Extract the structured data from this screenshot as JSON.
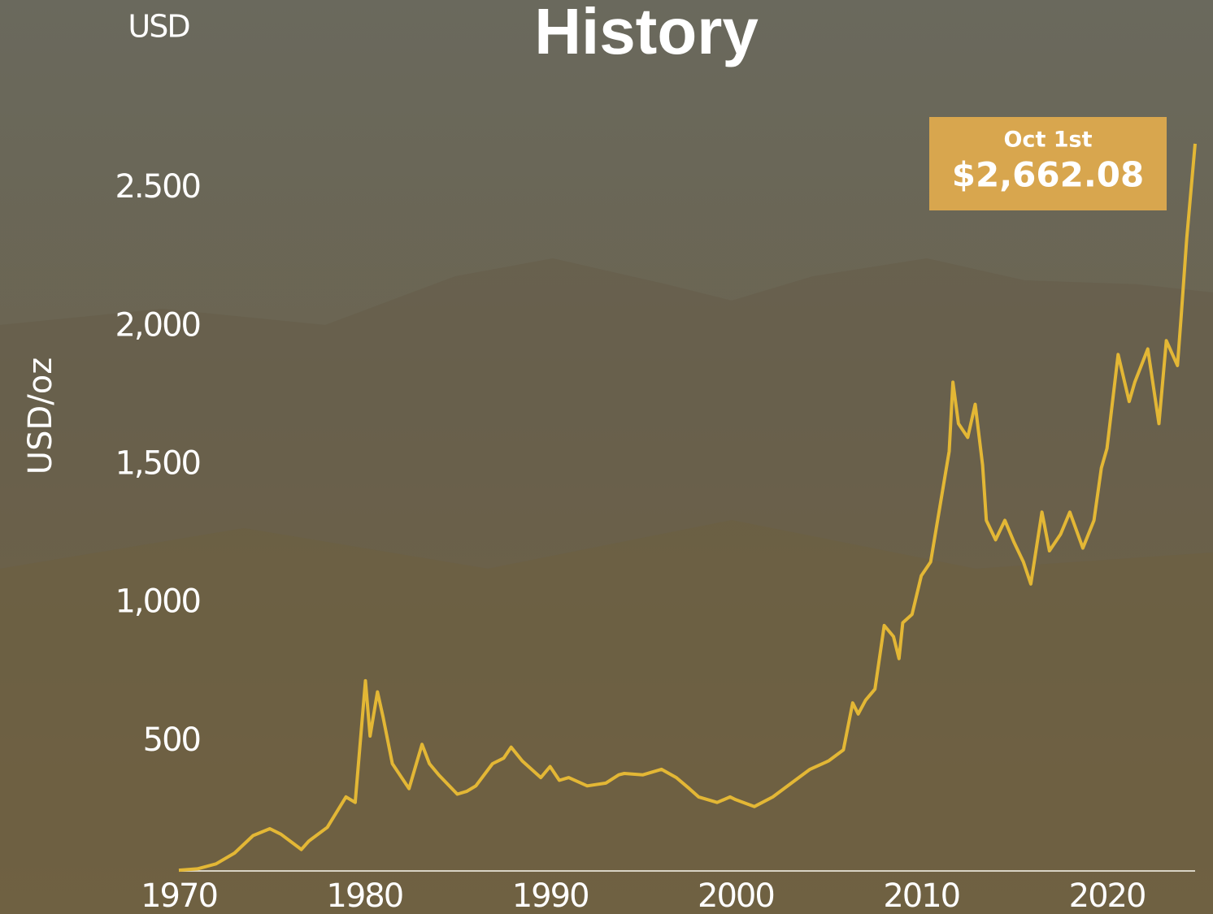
{
  "chart_data": {
    "type": "line",
    "title": "History",
    "unit_label": "USD",
    "y_label": "USD/oz",
    "annotation": {
      "date": "Oct 1st",
      "price": "$2,662.08"
    },
    "color": "#e3b735",
    "x": [
      1970,
      1971,
      1972,
      1973,
      1974,
      1974.9,
      1975.5,
      1976.6,
      1977,
      1978,
      1979,
      1979.5,
      1980.05,
      1980.3,
      1980.7,
      1981,
      1981.5,
      1982.4,
      1983.1,
      1983.5,
      1984,
      1985,
      1985.5,
      1986,
      1986.9,
      1987.5,
      1987.9,
      1988.5,
      1989,
      1989.5,
      1990,
      1990.5,
      1991,
      1992,
      1993,
      1993.7,
      1994,
      1995,
      1996,
      1996.8,
      1997.5,
      1998,
      1999,
      1999.7,
      2000,
      2001,
      2002,
      2003,
      2004,
      2005,
      2005.8,
      2006.3,
      2006.6,
      2007,
      2007.5,
      2008,
      2008.5,
      2008.8,
      2009,
      2009.5,
      2010,
      2010.5,
      2011,
      2011.5,
      2011.7,
      2012,
      2012.5,
      2012.9,
      2013.3,
      2013.5,
      2014,
      2014.5,
      2015,
      2015.5,
      2015.9,
      2016.5,
      2016.9,
      2017.5,
      2018,
      2018.7,
      2019.3,
      2019.7,
      2020,
      2020.6,
      2021.2,
      2021.5,
      2022.2,
      2022.8,
      2023.2,
      2023.8,
      2024,
      2024.3,
      2024.75
    ],
    "values": [
      35,
      40,
      58,
      97,
      160,
      185,
      165,
      110,
      140,
      190,
      300,
      280,
      720,
      520,
      680,
      590,
      420,
      330,
      490,
      420,
      380,
      310,
      320,
      340,
      420,
      440,
      480,
      430,
      400,
      370,
      410,
      360,
      370,
      340,
      350,
      380,
      385,
      380,
      400,
      370,
      330,
      300,
      280,
      300,
      290,
      265,
      300,
      350,
      400,
      430,
      470,
      640,
      600,
      650,
      690,
      920,
      880,
      800,
      930,
      960,
      1100,
      1150,
      1350,
      1550,
      1800,
      1650,
      1600,
      1720,
      1500,
      1300,
      1230,
      1300,
      1220,
      1150,
      1070,
      1330,
      1190,
      1250,
      1330,
      1200,
      1300,
      1490,
      1560,
      1900,
      1730,
      1800,
      1920,
      1650,
      1950,
      1860,
      2040,
      2320,
      2662.08
    ],
    "xlim": [
      1970,
      2024.75
    ],
    "xticks": [
      1970,
      1980,
      1990,
      2000,
      2010,
      2020
    ],
    "ylim": [
      0,
      2800
    ],
    "yticks": [
      500,
      {
        "value": 1000,
        "label": "1,000"
      },
      {
        "value": 1500,
        "label": "1,500"
      },
      {
        "value": 2000,
        "label": "2,000"
      },
      {
        "value": 2500,
        "label": "2.500"
      }
    ]
  }
}
